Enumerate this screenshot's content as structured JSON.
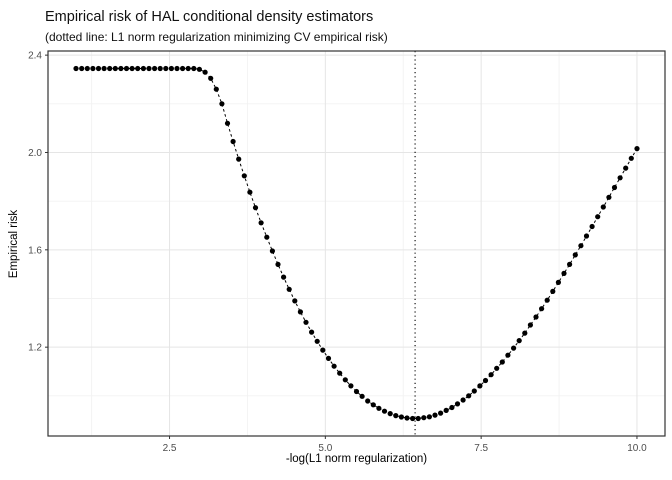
{
  "title": "Empirical risk of HAL conditional density estimators",
  "subtitle": "(dotted line: L1 norm regularization minimizing CV empirical risk)",
  "chart_data": {
    "type": "scatter",
    "title": "Empirical risk of HAL conditional density estimators",
    "subtitle": "(dotted line: L1 norm regularization minimizing CV empirical risk)",
    "xlabel": "-log(L1 norm regularization)",
    "ylabel": "Empirical risk",
    "xlim": [
      0.55,
      10.45
    ],
    "ylim": [
      0.835,
      2.417
    ],
    "x_major_ticks": [
      2.5,
      5.0,
      7.5,
      10.0
    ],
    "x_tick_labels": [
      "2.5",
      "5.0",
      "7.5",
      "10.0"
    ],
    "x_minor_ticks": [
      1.25,
      3.75,
      6.25,
      8.75
    ],
    "y_major_ticks": [
      1.2,
      1.6,
      2.0,
      2.4
    ],
    "y_tick_labels": [
      "1.2",
      "1.6",
      "2.0",
      "2.4"
    ],
    "y_minor_ticks": [
      1.0,
      1.4,
      1.8,
      2.2
    ],
    "vline_x": 6.44,
    "vline_style": "dotted",
    "line_style": "dashed",
    "point_color": "#000000",
    "line_color": "#000000",
    "vline_color": "#000000",
    "grid_major_color": "#e5e5e5",
    "grid_minor_color": "#f2f2f2",
    "panel_border_color": "#333333",
    "tick_label_color": "#4d4d4d",
    "legend": "none",
    "grid": "on",
    "x": [
      1.0,
      1.09,
      1.18,
      1.27,
      1.36,
      1.45,
      1.54,
      1.63,
      1.72,
      1.81,
      1.9,
      1.99,
      2.08,
      2.17,
      2.26,
      2.35,
      2.44,
      2.53,
      2.62,
      2.71,
      2.8,
      2.89,
      2.98,
      3.07,
      3.16,
      3.25,
      3.34,
      3.43,
      3.52,
      3.61,
      3.7,
      3.79,
      3.88,
      3.97,
      4.06,
      4.15,
      4.24,
      4.33,
      4.42,
      4.51,
      4.6,
      4.69,
      4.78,
      4.87,
      4.96,
      5.05,
      5.14,
      5.23,
      5.32,
      5.41,
      5.5,
      5.59,
      5.68,
      5.77,
      5.86,
      5.95,
      6.04,
      6.13,
      6.22,
      6.31,
      6.4,
      6.49,
      6.58,
      6.67,
      6.76,
      6.85,
      6.94,
      7.03,
      7.12,
      7.21,
      7.3,
      7.39,
      7.48,
      7.57,
      7.66,
      7.75,
      7.84,
      7.93,
      8.02,
      8.11,
      8.2,
      8.29,
      8.38,
      8.47,
      8.56,
      8.65,
      8.74,
      8.83,
      8.92,
      9.01,
      9.1,
      9.19,
      9.28,
      9.37,
      9.46,
      9.55,
      9.64,
      9.73,
      9.82,
      9.91,
      10.0
    ],
    "y": [
      2.345,
      2.345,
      2.345,
      2.345,
      2.345,
      2.345,
      2.345,
      2.345,
      2.345,
      2.345,
      2.345,
      2.345,
      2.345,
      2.345,
      2.345,
      2.345,
      2.345,
      2.345,
      2.345,
      2.345,
      2.345,
      2.345,
      2.342,
      2.33,
      2.305,
      2.26,
      2.2,
      2.12,
      2.045,
      1.973,
      1.904,
      1.837,
      1.773,
      1.711,
      1.652,
      1.595,
      1.54,
      1.488,
      1.438,
      1.39,
      1.345,
      1.302,
      1.262,
      1.224,
      1.188,
      1.154,
      1.122,
      1.093,
      1.066,
      1.041,
      1.018,
      0.998,
      0.979,
      0.963,
      0.949,
      0.937,
      0.927,
      0.919,
      0.913,
      0.909,
      0.907,
      0.907,
      0.91,
      0.914,
      0.921,
      0.929,
      0.94,
      0.952,
      0.967,
      0.983,
      1.0,
      1.02,
      1.041,
      1.063,
      1.087,
      1.113,
      1.139,
      1.167,
      1.196,
      1.227,
      1.258,
      1.291,
      1.324,
      1.358,
      1.393,
      1.429,
      1.466,
      1.503,
      1.54,
      1.579,
      1.617,
      1.657,
      1.696,
      1.736,
      1.776,
      1.816,
      1.856,
      1.896,
      1.936,
      1.976,
      2.016
    ]
  }
}
